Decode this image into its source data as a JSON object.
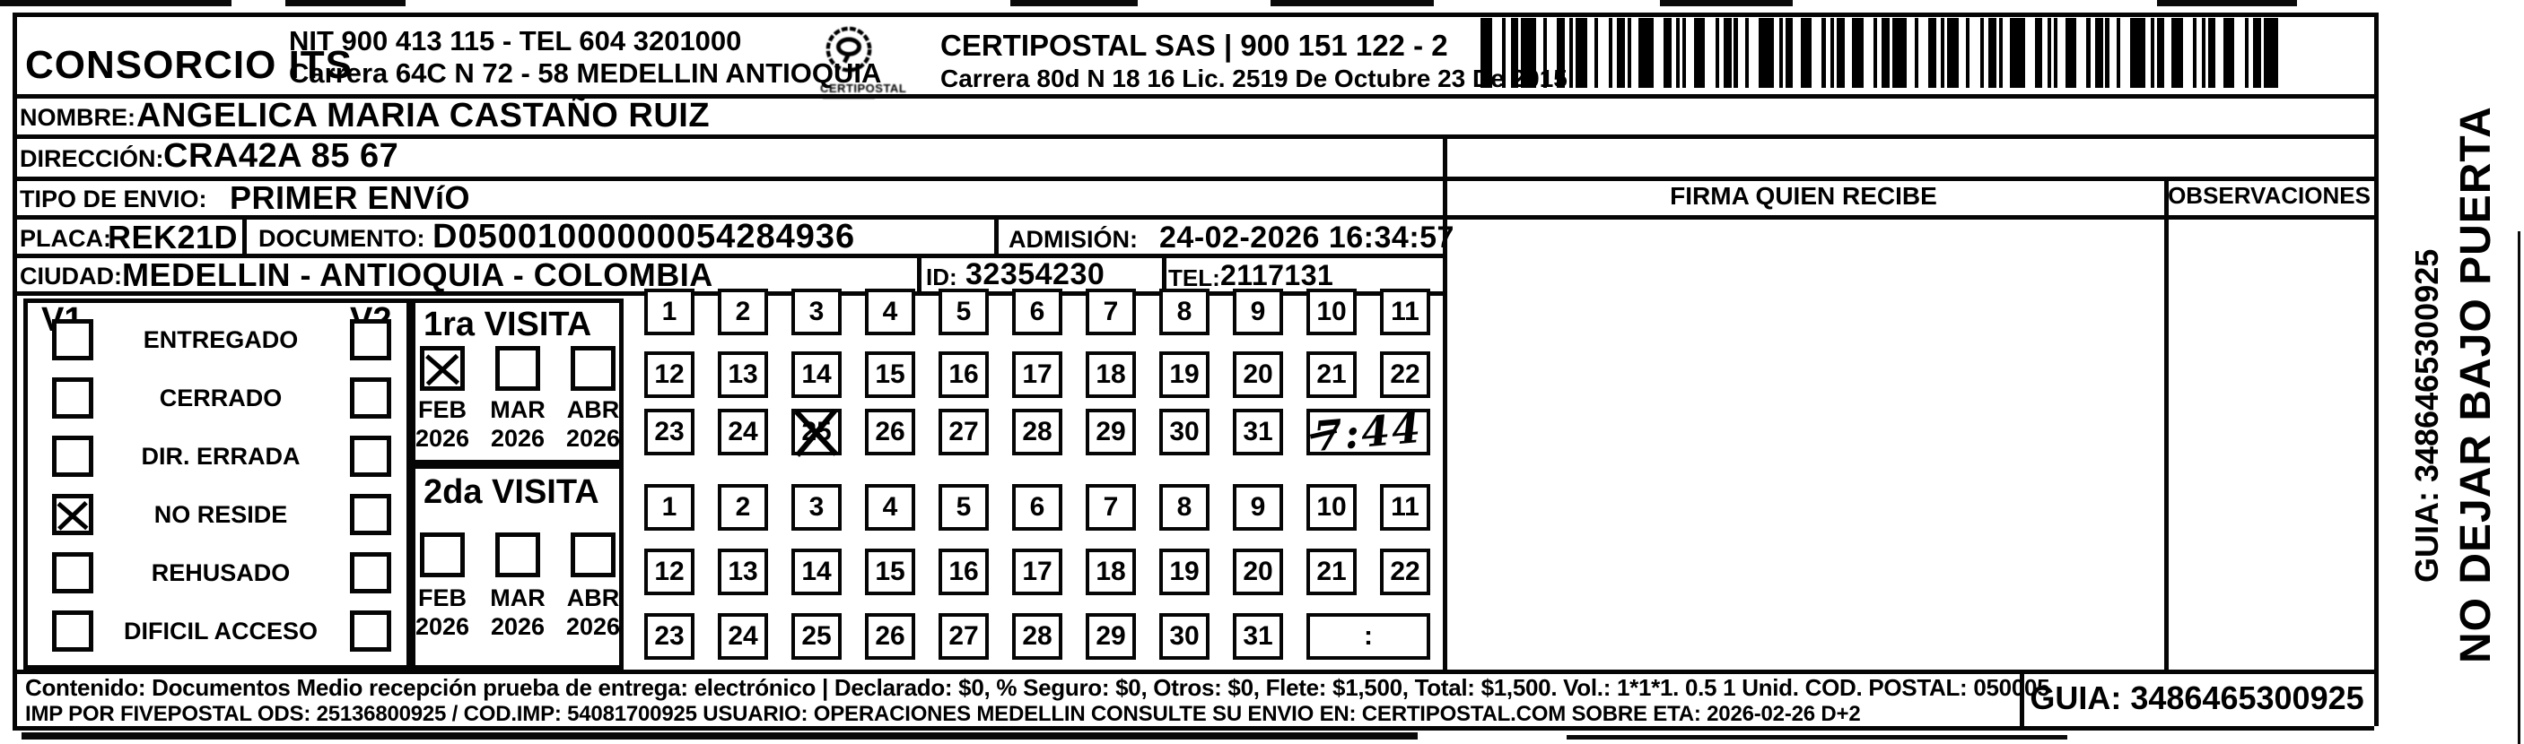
{
  "header": {
    "company": "CONSORCIO ITS",
    "nit_line1": "NIT 900 413 115 - TEL 604 3201000",
    "nit_line2": "Carrera 64C N 72 - 58 MEDELLIN ANTIOQUIA",
    "logo_caption": "CERTIPOSTAL",
    "right_line1": "CERTIPOSTAL SAS | 900 151 122 - 2",
    "right_line2": "Carrera 80d N 18 16  Lic. 2519 De Octubre 23 De 2015"
  },
  "fields": {
    "nombre_label": "NOMBRE:",
    "nombre": "ANGELICA MARIA CASTAÑO RUIZ",
    "direccion_label": "DIRECCIÓN:",
    "direccion": "CRA42A 85 67",
    "tipo_label": "TIPO DE ENVIO:",
    "tipo": "PRIMER ENVíO",
    "placa_label": "PLACA:",
    "placa": "REK21D",
    "documento_label": "DOCUMENTO:",
    "documento": "D05001000000054284936",
    "admision_label": "ADMISIÓN:",
    "admision": "24-02-2026 16:34:57",
    "ciudad_label": "CIUDAD:",
    "ciudad": "MEDELLIN - ANTIOQUIA - COLOMBIA",
    "id_label": "ID:",
    "id": "32354230",
    "tel_label": "TEL:",
    "tel": "2117131"
  },
  "status": {
    "v1": "V1",
    "v2": "V2",
    "items": [
      {
        "label": "ENTREGADO",
        "v1": false,
        "v2": false
      },
      {
        "label": "CERRADO",
        "v1": false,
        "v2": false
      },
      {
        "label": "DIR. ERRADA",
        "v1": false,
        "v2": false
      },
      {
        "label": "NO RESIDE",
        "v1": true,
        "v2": false
      },
      {
        "label": "REHUSADO",
        "v1": false,
        "v2": false
      },
      {
        "label": "DIFICIL ACCESO",
        "v1": false,
        "v2": false
      }
    ]
  },
  "visits": {
    "first": {
      "title": "1ra VISITA",
      "months": [
        {
          "label": "FEB",
          "year": "2026",
          "checked": true
        },
        {
          "label": "MAR",
          "year": "2026",
          "checked": false
        },
        {
          "label": "ABR",
          "year": "2026",
          "checked": false
        }
      ],
      "day_rows": [
        [
          1,
          2,
          3,
          4,
          5,
          6,
          7,
          8,
          9,
          10,
          11
        ],
        [
          12,
          13,
          14,
          15,
          16,
          17,
          18,
          19,
          20,
          21,
          22
        ],
        [
          23,
          24,
          25,
          26,
          27,
          28,
          29,
          30,
          31
        ]
      ],
      "crossed_day": 25,
      "time_handwritten": "7:44"
    },
    "second": {
      "title": "2da VISITA",
      "months": [
        {
          "label": "FEB",
          "year": "2026",
          "checked": false
        },
        {
          "label": "MAR",
          "year": "2026",
          "checked": false
        },
        {
          "label": "ABR",
          "year": "2026",
          "checked": false
        }
      ],
      "day_rows": [
        [
          1,
          2,
          3,
          4,
          5,
          6,
          7,
          8,
          9,
          10,
          11
        ],
        [
          12,
          13,
          14,
          15,
          16,
          17,
          18,
          19,
          20,
          21,
          22
        ],
        [
          23,
          24,
          25,
          26,
          27,
          28,
          29,
          30,
          31
        ]
      ],
      "crossed_day": null,
      "time_placeholder": ":"
    }
  },
  "receipt": {
    "firma": "FIRMA QUIEN RECIBE",
    "observaciones": "OBSERVACIONES"
  },
  "footer": {
    "line1": "Contenido: Documentos Medio recepción prueba de entrega: electrónico | Declarado: $0, % Seguro: $0, Otros: $0, Flete: $1,500, Total: $1,500. Vol.: 1*1*1. 0.5  1 Unid. COD. POSTAL: 050005",
    "line2": "IMP POR FIVEPOSTAL ODS: 25136800925 / COD.IMP: 54081700925 USUARIO: OPERACIONES MEDELLIN CONSULTE SU ENVIO EN: CERTIPOSTAL.COM SOBRE ETA: 2026-02-26 D+2",
    "guia": "GUIA: 3486465300925"
  },
  "side": {
    "warning": "NO DEJAR BAJO PUERTA",
    "guia": "GUIA: 3486465300925"
  }
}
